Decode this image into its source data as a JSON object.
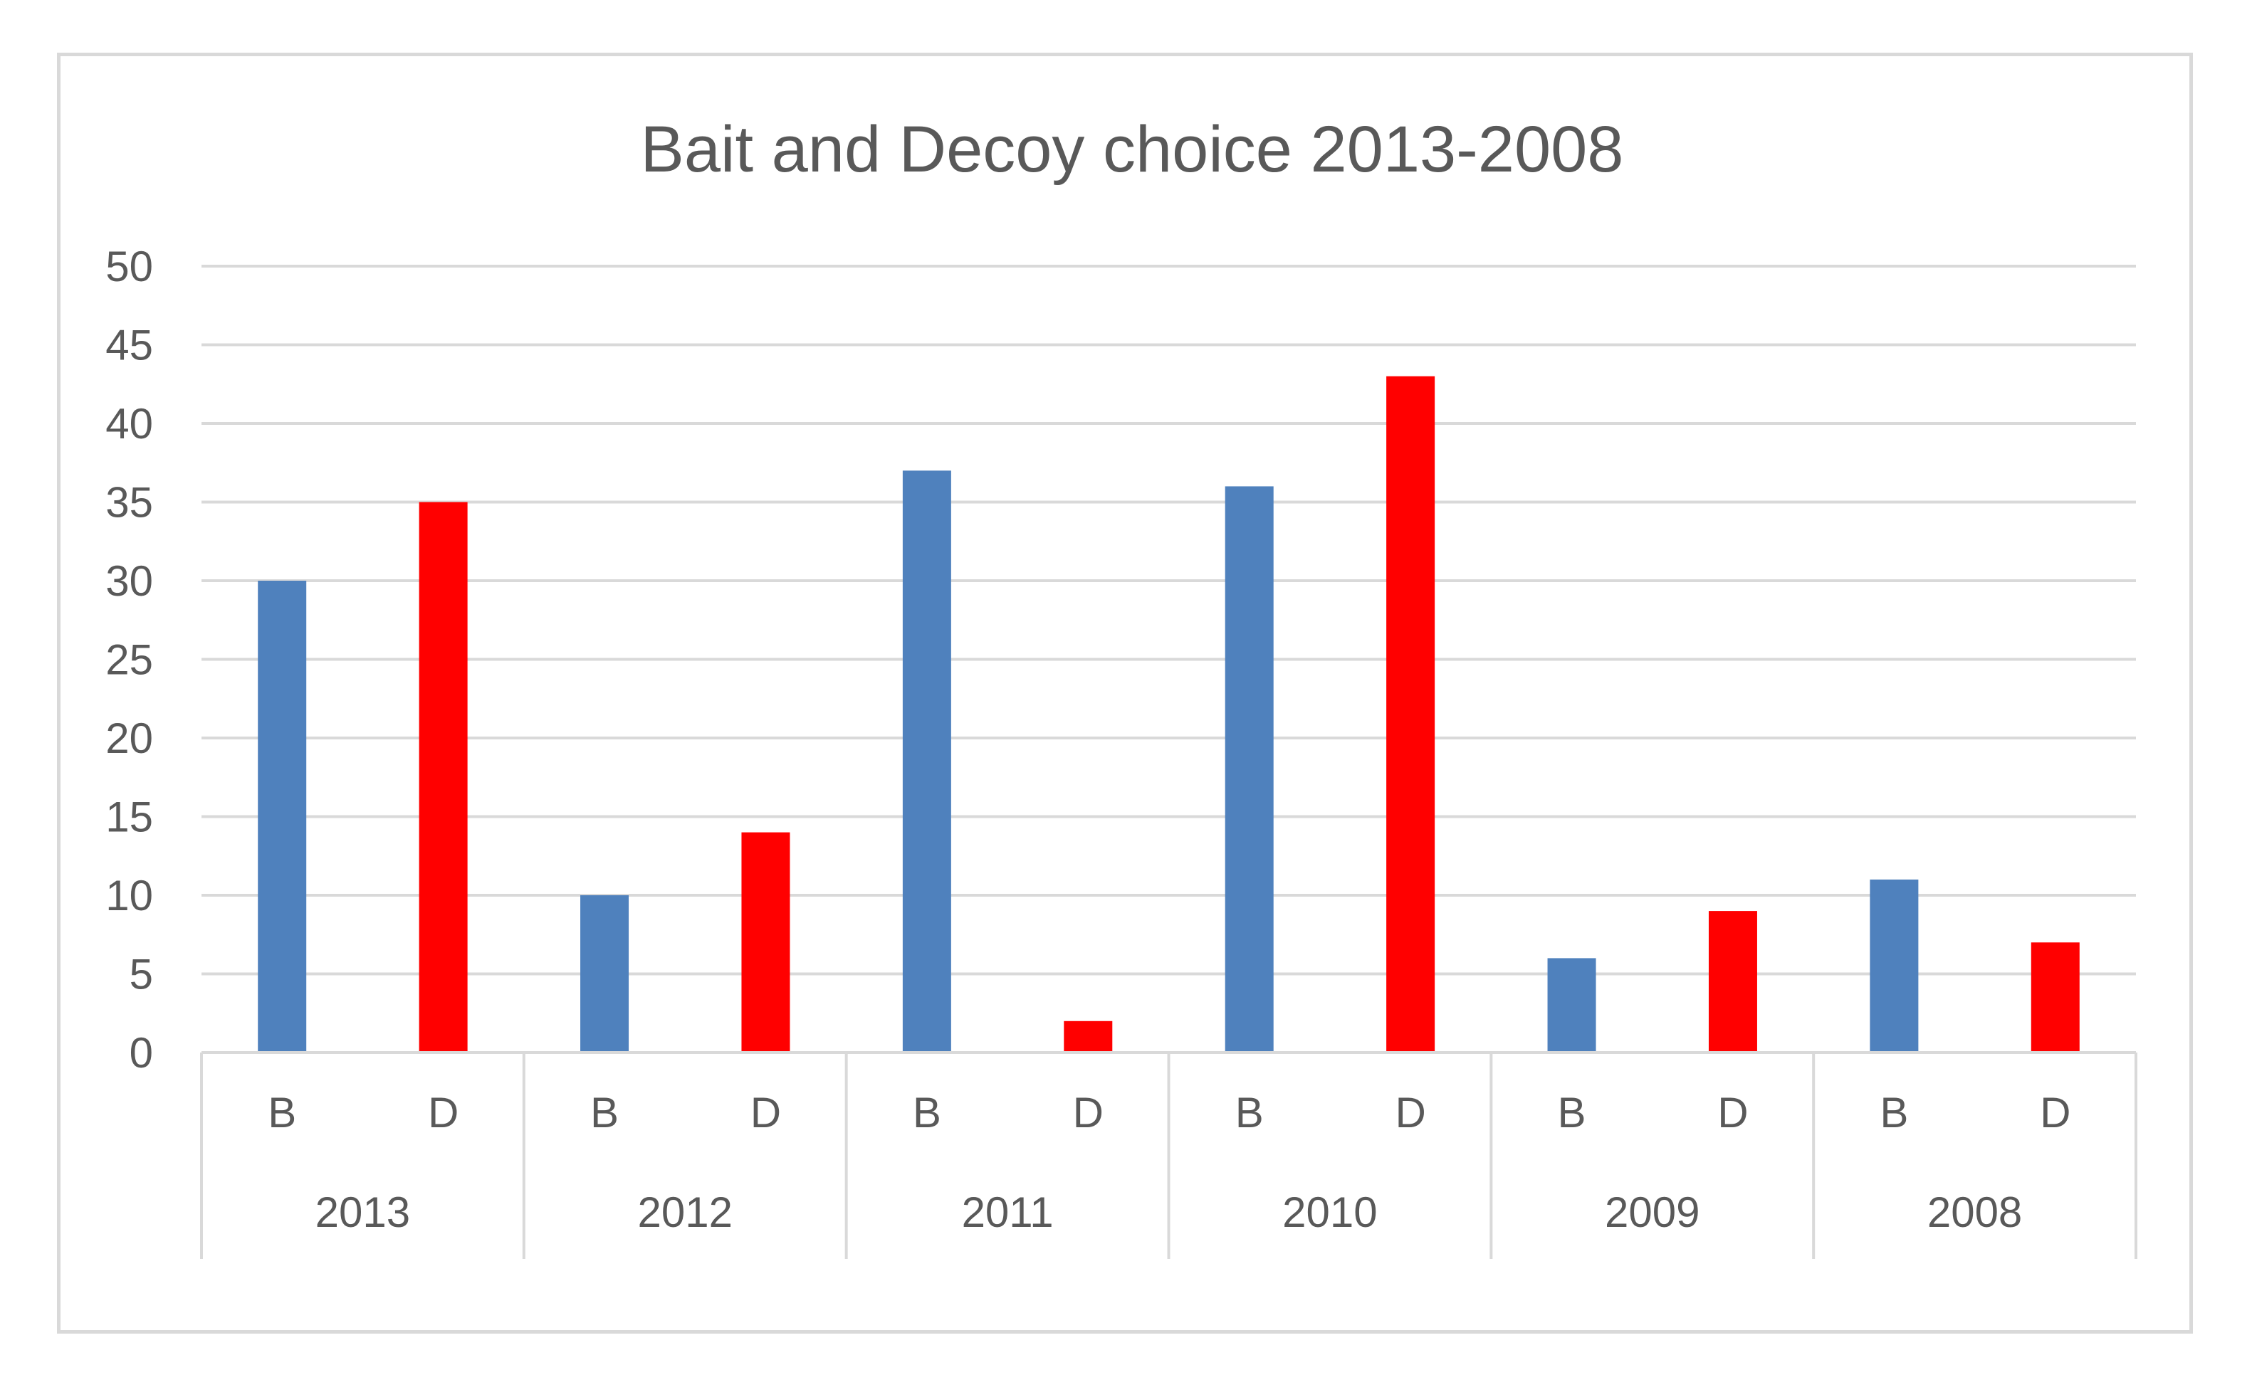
{
  "chart_data": {
    "type": "bar",
    "title": "Bait and Decoy choice 2013-2008",
    "xlabel": "",
    "ylabel": "",
    "ylim": [
      0,
      50
    ],
    "yticks": [
      0,
      5,
      10,
      15,
      20,
      25,
      30,
      35,
      40,
      45,
      50
    ],
    "grid": true,
    "legend": "none",
    "groups": [
      {
        "label": "2013",
        "bars": [
          {
            "label": "B",
            "value": 30,
            "color": "#4f81bd"
          },
          {
            "label": "D",
            "value": 35,
            "color": "#ff0000"
          }
        ]
      },
      {
        "label": "2012",
        "bars": [
          {
            "label": "B",
            "value": 10,
            "color": "#4f81bd"
          },
          {
            "label": "D",
            "value": 14,
            "color": "#ff0000"
          }
        ]
      },
      {
        "label": "2011",
        "bars": [
          {
            "label": "B",
            "value": 37,
            "color": "#4f81bd"
          },
          {
            "label": "D",
            "value": 2,
            "color": "#ff0000"
          }
        ]
      },
      {
        "label": "2010",
        "bars": [
          {
            "label": "B",
            "value": 36,
            "color": "#4f81bd"
          },
          {
            "label": "D",
            "value": 43,
            "color": "#ff0000"
          }
        ]
      },
      {
        "label": "2009",
        "bars": [
          {
            "label": "B",
            "value": 6,
            "color": "#4f81bd"
          },
          {
            "label": "D",
            "value": 9,
            "color": "#ff0000"
          }
        ]
      },
      {
        "label": "2008",
        "bars": [
          {
            "label": "B",
            "value": 11,
            "color": "#4f81bd"
          },
          {
            "label": "D",
            "value": 7,
            "color": "#ff0000"
          }
        ]
      }
    ]
  }
}
